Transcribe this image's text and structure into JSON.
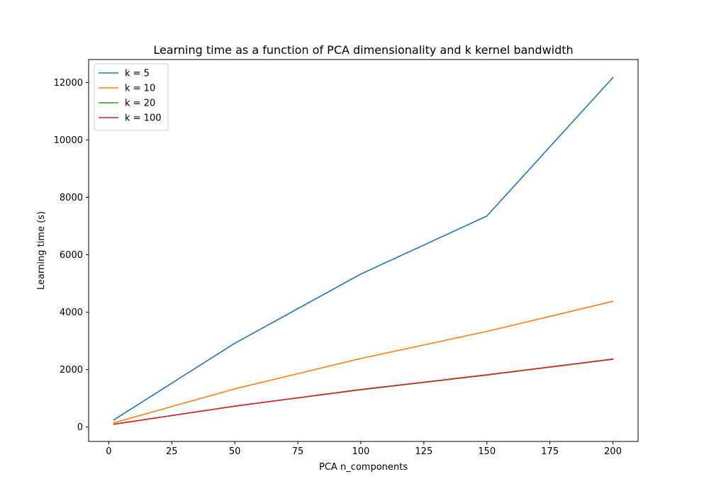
{
  "chart_data": {
    "type": "line",
    "title": "Learning time as a function of PCA dimensionality and k kernel bandwidth",
    "xlabel": "PCA n_components",
    "ylabel": "Learning time (s)",
    "x": [
      2,
      50,
      100,
      150,
      200
    ],
    "xlim": [
      -8,
      210
    ],
    "ylim": [
      -500,
      12800
    ],
    "xticks": [
      0,
      25,
      50,
      75,
      100,
      125,
      150,
      175,
      200
    ],
    "yticks": [
      0,
      2000,
      4000,
      6000,
      8000,
      10000,
      12000
    ],
    "grid": false,
    "legend_position": "top-left",
    "series": [
      {
        "name": "k = 5",
        "color": "#1f77b4",
        "values": [
          250,
          2920,
          5330,
          7350,
          12170
        ]
      },
      {
        "name": "k = 10",
        "color": "#ff7f0e",
        "values": [
          150,
          1330,
          2390,
          3330,
          4380
        ]
      },
      {
        "name": "k = 20",
        "color": "#2ca02c",
        "values": [
          100,
          730,
          1300,
          1810,
          2360
        ]
      },
      {
        "name": "k = 100",
        "color": "#d62728",
        "values": [
          100,
          730,
          1310,
          1820,
          2370
        ]
      }
    ]
  }
}
